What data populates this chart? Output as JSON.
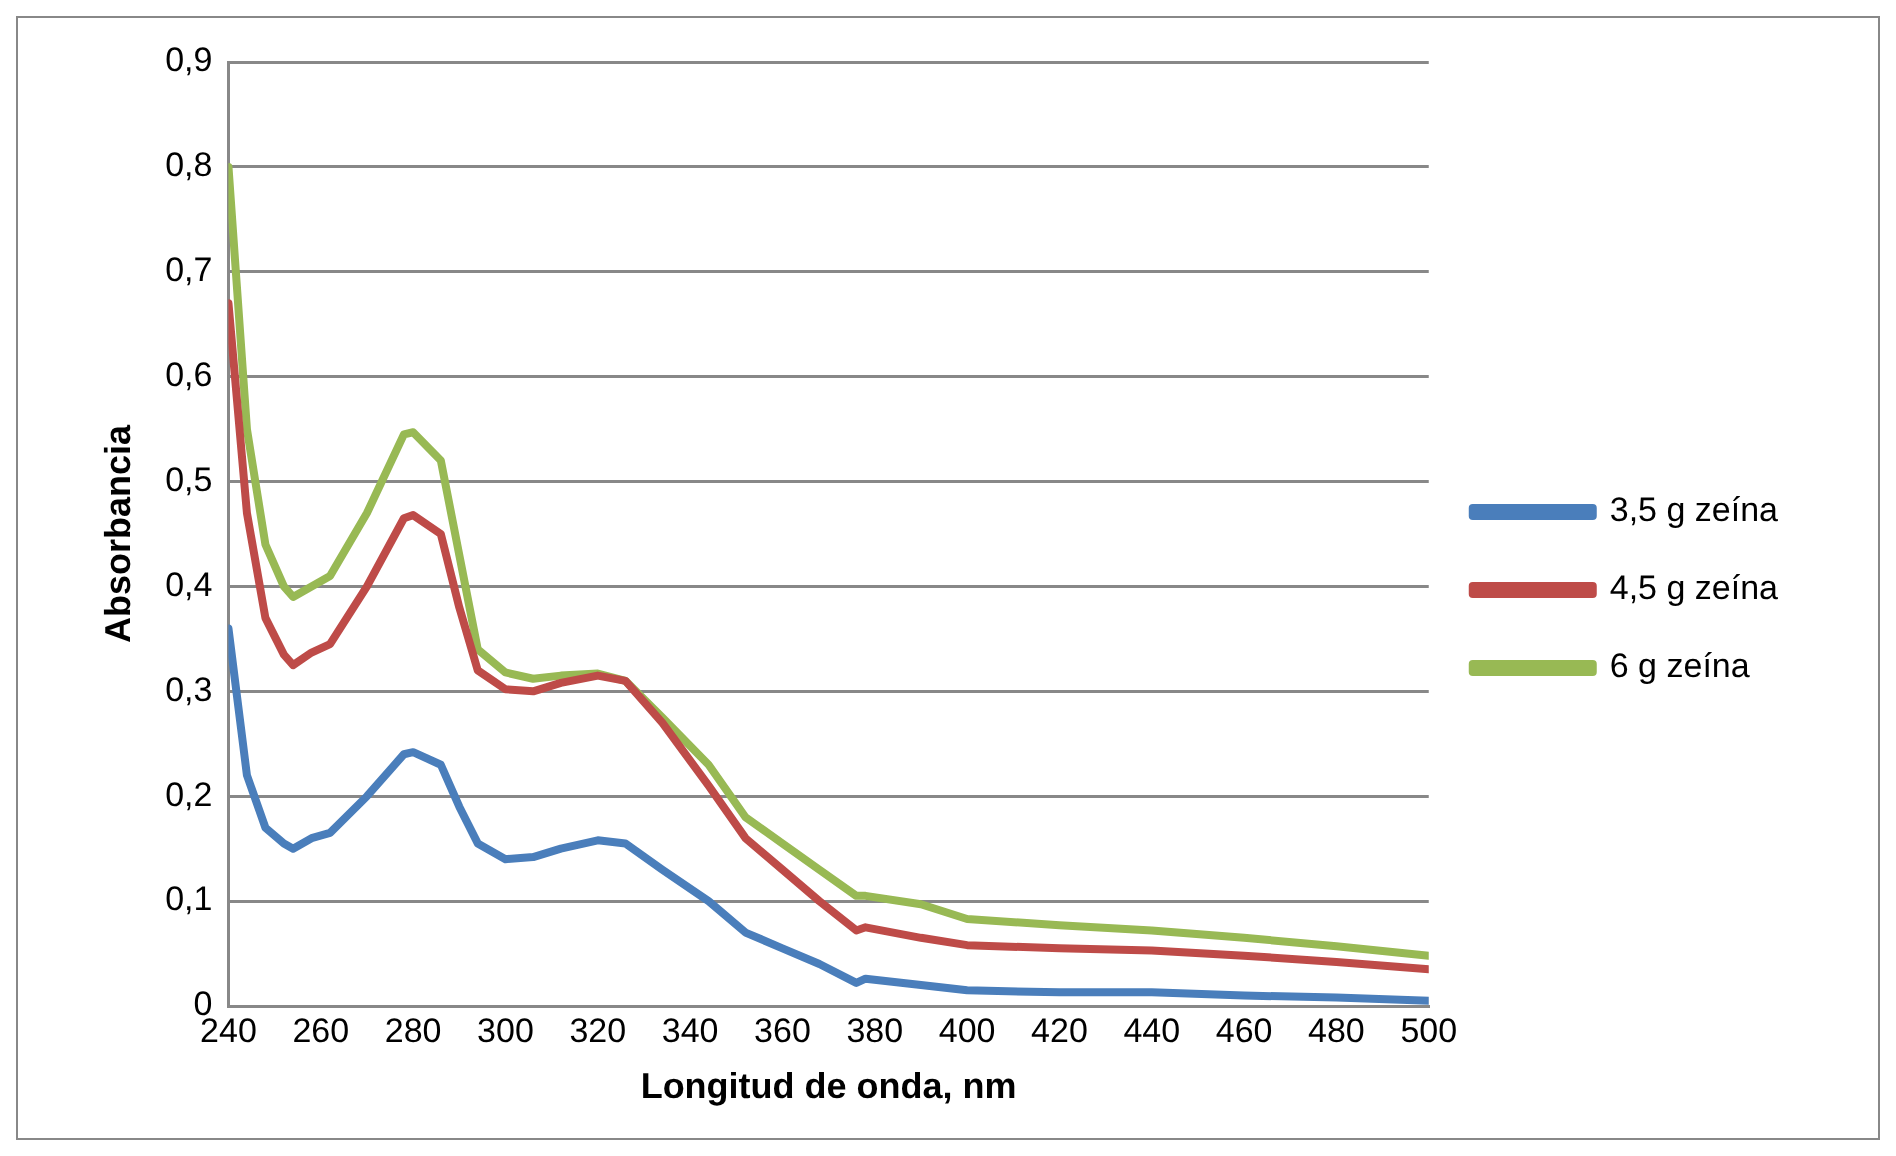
{
  "chart_data": {
    "type": "line",
    "xlabel": "Longitud de onda, nm",
    "ylabel": "Absorbancia",
    "x": [
      240,
      244,
      248,
      252,
      254,
      258,
      262,
      270,
      278,
      280,
      286,
      290,
      294,
      300,
      306,
      312,
      320,
      326,
      334,
      344,
      352,
      360,
      368,
      376,
      378,
      390,
      400,
      420,
      440,
      460,
      480,
      500
    ],
    "series": [
      {
        "name": "3,5 g zeína",
        "color": "#4a7ebb",
        "values": [
          0.36,
          0.22,
          0.17,
          0.155,
          0.15,
          0.16,
          0.165,
          0.2,
          0.24,
          0.242,
          0.23,
          0.19,
          0.155,
          0.14,
          0.142,
          0.15,
          0.158,
          0.155,
          0.13,
          0.1,
          0.07,
          0.055,
          0.04,
          0.022,
          0.026,
          0.02,
          0.015,
          0.013,
          0.013,
          0.01,
          0.008,
          0.005
        ]
      },
      {
        "name": "4,5 g zeína",
        "color": "#be4b48",
        "values": [
          0.67,
          0.47,
          0.37,
          0.335,
          0.325,
          0.337,
          0.345,
          0.4,
          0.465,
          0.468,
          0.45,
          0.38,
          0.32,
          0.302,
          0.3,
          0.308,
          0.315,
          0.31,
          0.27,
          0.21,
          0.16,
          0.13,
          0.1,
          0.072,
          0.075,
          0.065,
          0.058,
          0.055,
          0.053,
          0.048,
          0.042,
          0.035
        ]
      },
      {
        "name": "6 g zeína",
        "color": "#98b954",
        "values": [
          0.8,
          0.55,
          0.44,
          0.4,
          0.39,
          0.4,
          0.41,
          0.47,
          0.545,
          0.547,
          0.52,
          0.43,
          0.34,
          0.318,
          0.312,
          0.315,
          0.317,
          0.31,
          0.275,
          0.23,
          0.18,
          0.155,
          0.13,
          0.105,
          0.105,
          0.097,
          0.083,
          0.077,
          0.072,
          0.065,
          0.057,
          0.048
        ]
      }
    ],
    "xlim": [
      240,
      500
    ],
    "xticks": [
      240,
      260,
      280,
      300,
      320,
      340,
      360,
      380,
      400,
      420,
      440,
      460,
      480,
      500
    ],
    "ylim": [
      0,
      0.9
    ],
    "yticks": [
      0,
      {
        "value": 0.1,
        "label": "0,1"
      },
      {
        "value": 0.2,
        "label": "0,2"
      },
      {
        "value": 0.3,
        "label": "0,3"
      },
      {
        "value": 0.4,
        "label": "0,4"
      },
      {
        "value": 0.5,
        "label": "0,5"
      },
      {
        "value": 0.6,
        "label": "0,6"
      },
      {
        "value": 0.7,
        "label": "0,7"
      },
      {
        "value": 0.8,
        "label": "0,8"
      },
      {
        "value": 0.9,
        "label": "0,9"
      }
    ],
    "grid": "y",
    "legend": "right",
    "marker": "none",
    "line_style": "solid"
  }
}
